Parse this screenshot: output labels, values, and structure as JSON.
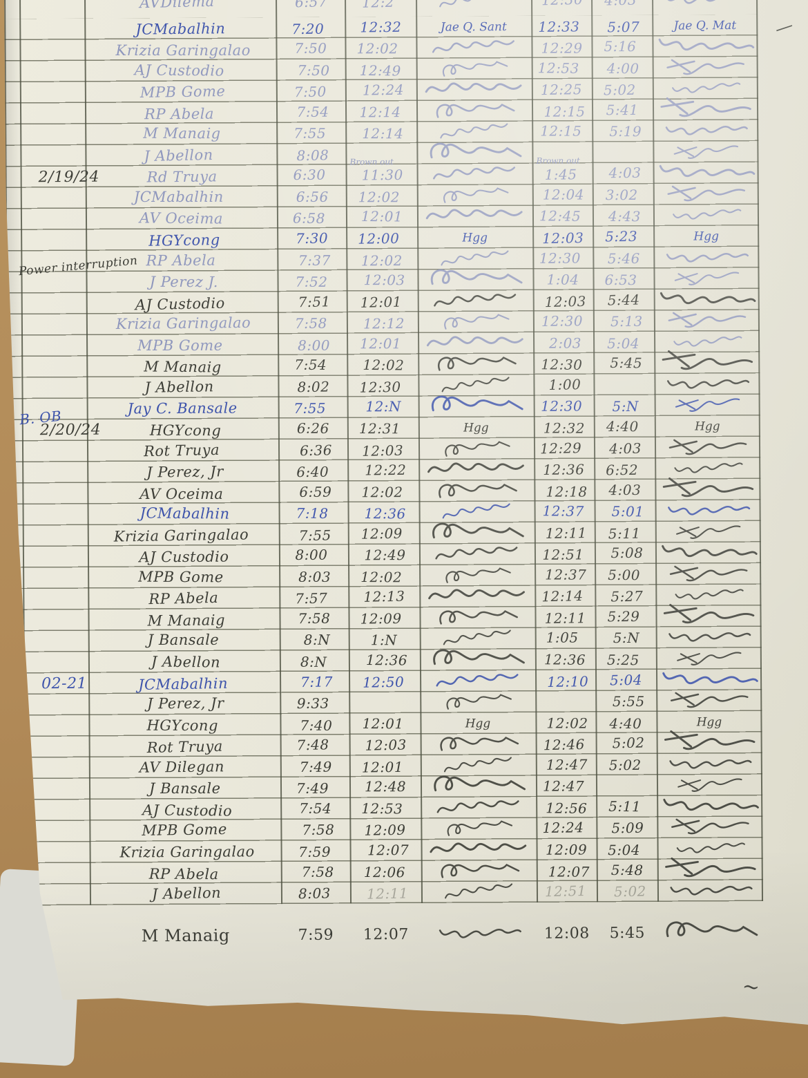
{
  "ink_colors": {
    "blue": "#3d53ab",
    "faint": "#8f97bd",
    "dark": "#3d3e37"
  },
  "paper_color": "#e8e6d9",
  "desk_color": "#b18a58",
  "sections": [
    {
      "date": "",
      "date_ink": "dark",
      "rows": [
        {
          "name": "AVDilema",
          "am_in": "6:57",
          "am_out": "12:2",
          "sig1": "~",
          "pm_in": "12:30",
          "pm_out": "4:03",
          "sig2": "~",
          "ink": "faint"
        },
        {
          "name": "JCMabalhin",
          "am_in": "7:20",
          "am_out": "12:32",
          "sig1": "Jae Q. Sant",
          "pm_in": "12:33",
          "pm_out": "5:07",
          "sig2": "Jae Q. Mat",
          "ink": "blue"
        },
        {
          "name": "Krizia Garingalao",
          "am_in": "7:50",
          "am_out": "12:02",
          "sig1": "~",
          "pm_in": "12:29",
          "pm_out": "5:16",
          "sig2": "~",
          "ink": "faint"
        },
        {
          "name": "AJ Custodio",
          "am_in": "7:50",
          "am_out": "12:49",
          "sig1": "~",
          "pm_in": "12:53",
          "pm_out": "4:00",
          "sig2": "~",
          "ink": "faint"
        },
        {
          "name": "MPB Gome",
          "am_in": "7:50",
          "am_out": "12:24",
          "sig1": "~",
          "pm_in": "12:25",
          "pm_out": "5:02",
          "sig2": "~",
          "ink": "faint"
        },
        {
          "name": "RP Abela",
          "am_in": "7:54",
          "am_out": "12:14",
          "sig1": "~",
          "pm_in": "12:15",
          "pm_out": "5:41",
          "sig2": "~",
          "ink": "faint"
        },
        {
          "name": "M Manaig",
          "am_in": "7:55",
          "am_out": "12:14",
          "sig1": "~",
          "pm_in": "12:15",
          "pm_out": "5:19",
          "sig2": "~",
          "ink": "faint"
        },
        {
          "name": "J Abellon",
          "am_in": "8:08",
          "am_out": "",
          "sig1": "~",
          "pm_in": "",
          "pm_out": "",
          "sig2": "~",
          "ink": "faint"
        }
      ]
    },
    {
      "date": "2/19/24",
      "date_ink": "dark",
      "rows": [
        {
          "name": "Rd Truya",
          "am_in": "6:30",
          "am_out": "11:30",
          "am_out_note": "Brown out",
          "sig1": "~",
          "pm_in": "1:45",
          "pm_in_note": "Brown out",
          "pm_out": "4:03",
          "sig2": "~",
          "ink": "faint"
        },
        {
          "name": "JCMabalhin",
          "am_in": "6:56",
          "am_out": "12:02",
          "sig1": "~",
          "pm_in": "12:04",
          "pm_out": "3:02",
          "sig2": "~",
          "ink": "faint"
        },
        {
          "name": "AV Oceima",
          "am_in": "6:58",
          "am_out": "12:01",
          "sig1": "~",
          "pm_in": "12:45",
          "pm_out": "4:43",
          "sig2": "~",
          "ink": "faint"
        },
        {
          "name": "HGYcong",
          "am_in": "7:30",
          "am_out": "12:00",
          "sig1": "Hgg",
          "pm_in": "12:03",
          "pm_out": "5:23",
          "sig2": "Hgg",
          "ink": "blue"
        },
        {
          "name": "RP Abela",
          "date_note": "Power interruption",
          "date_note_ink": "dark",
          "am_in": "7:37",
          "am_out": "12:02",
          "sig1": "~",
          "pm_in": "12:30",
          "pm_out": "5:46",
          "sig2": "~",
          "ink": "faint"
        },
        {
          "name": "J Perez J.",
          "am_in": "7:52",
          "am_out": "12:03",
          "sig1": "~",
          "pm_in": "1:04",
          "pm_out": "6:53",
          "sig2": "~",
          "ink": "faint"
        },
        {
          "name": "AJ Custodio",
          "am_in": "7:51",
          "am_out": "12:01",
          "sig1": "~",
          "pm_in": "12:03",
          "pm_out": "5:44",
          "sig2": "~",
          "ink": "dark"
        },
        {
          "name": "Krizia Garingalao",
          "am_in": "7:58",
          "am_out": "12:12",
          "sig1": "~",
          "pm_in": "12:30",
          "pm_out": "5:13",
          "sig2": "~",
          "ink": "faint"
        },
        {
          "name": "MPB Gome",
          "am_in": "8:00",
          "am_out": "12:01",
          "sig1": "~",
          "pm_in": "2:03",
          "pm_out": "5:04",
          "sig2": "~",
          "ink": "faint"
        },
        {
          "name": "M Manaig",
          "am_in": "7:54",
          "am_out": "12:02",
          "sig1": "~",
          "pm_in": "12:30",
          "pm_out": "5:45",
          "sig2": "~",
          "ink": "dark"
        },
        {
          "name": "J Abellon",
          "am_in": "8:02",
          "am_out": "12:30",
          "sig1": "~",
          "pm_in": "1:00",
          "pm_out": "",
          "sig2": "~",
          "ink": "dark"
        },
        {
          "name": "Jay C. Bansale",
          "date_note": "B. OB",
          "date_note_ink": "blue",
          "am_in": "7:55",
          "am_out": "12:N",
          "sig1": "~",
          "pm_in": "12:30",
          "pm_out": "5:N",
          "sig2": "~",
          "ink": "blue"
        }
      ]
    },
    {
      "date": "2/20/24",
      "date_ink": "dark",
      "rows": [
        {
          "name": "HGYcong",
          "am_in": "6:26",
          "am_out": "12:31",
          "sig1": "Hgg",
          "pm_in": "12:32",
          "pm_out": "4:40",
          "sig2": "Hgg",
          "ink": "dark"
        },
        {
          "name": "Rot Truya",
          "am_in": "6:36",
          "am_out": "12:03",
          "sig1": "~",
          "pm_in": "12:29",
          "pm_out": "4:03",
          "sig2": "~",
          "ink": "dark"
        },
        {
          "name": "J Perez, Jr",
          "am_in": "6:40",
          "am_out": "12:22",
          "sig1": "~",
          "pm_in": "12:36",
          "pm_out": "6:52",
          "sig2": "~",
          "ink": "dark"
        },
        {
          "name": "AV Oceima",
          "am_in": "6:59",
          "am_out": "12:02",
          "sig1": "~",
          "pm_in": "12:18",
          "pm_out": "4:03",
          "sig2": "~",
          "ink": "dark"
        },
        {
          "name": "JCMabalhin",
          "am_in": "7:18",
          "am_out": "12:36",
          "sig1": "~",
          "pm_in": "12:37",
          "pm_out": "5:01",
          "sig2": "~",
          "ink": "blue"
        },
        {
          "name": "Krizia Garingalao",
          "am_in": "7:55",
          "am_out": "12:09",
          "sig1": "~",
          "pm_in": "12:11",
          "pm_out": "5:11",
          "sig2": "~",
          "ink": "dark"
        },
        {
          "name": "AJ Custodio",
          "am_in": "8:00",
          "am_out": "12:49",
          "sig1": "~",
          "pm_in": "12:51",
          "pm_out": "5:08",
          "sig2": "~",
          "ink": "dark"
        },
        {
          "name": "MPB Gome",
          "am_in": "8:03",
          "am_out": "12:02",
          "sig1": "~",
          "pm_in": "12:37",
          "pm_out": "5:00",
          "sig2": "~",
          "ink": "dark"
        },
        {
          "name": "RP Abela",
          "am_in": "7:57",
          "am_out": "12:13",
          "sig1": "~",
          "pm_in": "12:14",
          "pm_out": "5:27",
          "sig2": "~",
          "ink": "dark"
        },
        {
          "name": "M Manaig",
          "am_in": "7:58",
          "am_out": "12:09",
          "sig1": "~",
          "pm_in": "12:11",
          "pm_out": "5:29",
          "sig2": "~",
          "ink": "dark"
        },
        {
          "name": "J Bansale",
          "am_in": "8:N",
          "am_out": "1:N",
          "sig1": "~",
          "pm_in": "1:05",
          "pm_out": "5:N",
          "sig2": "~",
          "ink": "dark"
        },
        {
          "name": "J Abellon",
          "am_in": "8:N",
          "am_out": "12:36",
          "sig1": "~",
          "pm_in": "12:36",
          "pm_out": "5:25",
          "sig2": "~",
          "ink": "dark"
        }
      ]
    },
    {
      "date": "02-21",
      "date_ink": "blue",
      "rows": [
        {
          "name": "JCMabalhin",
          "am_in": "7:17",
          "am_out": "12:50",
          "sig1": "~",
          "pm_in": "12:10",
          "pm_out": "5:04",
          "sig2": "~",
          "ink": "blue"
        },
        {
          "name": "J Perez, Jr",
          "am_in": "9:33",
          "am_out": "",
          "sig1": "~",
          "pm_in": "",
          "pm_out": "5:55",
          "sig2": "~",
          "ink": "dark"
        },
        {
          "name": "HGYcong",
          "am_in": "7:40",
          "am_out": "12:01",
          "sig1": "Hgg",
          "pm_in": "12:02",
          "pm_out": "4:40",
          "sig2": "Hgg",
          "ink": "dark"
        },
        {
          "name": "Rot Truya",
          "am_in": "7:48",
          "am_out": "12:03",
          "sig1": "~",
          "pm_in": "12:46",
          "pm_out": "5:02",
          "sig2": "~",
          "ink": "dark"
        },
        {
          "name": "AV Dilegan",
          "am_in": "7:49",
          "am_out": "12:01",
          "sig1": "~",
          "pm_in": "12:47",
          "pm_out": "5:02",
          "sig2": "~",
          "ink": "dark"
        },
        {
          "name": "J Bansale",
          "am_in": "7:49",
          "am_out": "12:48",
          "sig1": "~",
          "pm_in": "12:47",
          "pm_out": "",
          "sig2": "~",
          "ink": "dark"
        },
        {
          "name": "AJ Custodio",
          "am_in": "7:54",
          "am_out": "12:53",
          "sig1": "~",
          "pm_in": "12:56",
          "pm_out": "5:11",
          "sig2": "~",
          "ink": "dark"
        },
        {
          "name": "MPB Gome",
          "am_in": "7:58",
          "am_out": "12:09",
          "sig1": "~",
          "pm_in": "12:24",
          "pm_out": "5:09",
          "sig2": "~",
          "ink": "dark"
        },
        {
          "name": "Krizia Garingalao",
          "am_in": "7:59",
          "am_out": "12:07",
          "sig1": "~",
          "pm_in": "12:09",
          "pm_out": "5:04",
          "sig2": "~",
          "ink": "dark"
        },
        {
          "name": "RP Abela",
          "am_in": "7:58",
          "am_out": "12:06",
          "sig1": "~",
          "pm_in": "12:07",
          "pm_out": "5:48",
          "sig2": "~",
          "ink": "dark"
        },
        {
          "name": "J Abellon",
          "am_in": "8:03",
          "am_out": "12:11",
          "am_out_faint": true,
          "sig1": "~",
          "pm_in": "12:51",
          "pm_out": "5:02",
          "pm_faint": true,
          "sig2": "~",
          "ink": "dark"
        }
      ]
    }
  ],
  "footer_row": {
    "name": "M Manaig",
    "am_in": "7:59",
    "am_out": "12:07",
    "sig1": "~",
    "pm_in": "12:08",
    "pm_out": "5:45",
    "sig2": "~",
    "ink": "dark"
  },
  "stray_marks": [
    {
      "id": "dash-top-right",
      "glyph": "—"
    },
    {
      "id": "squiggle-bottom-right",
      "glyph": "~"
    }
  ]
}
